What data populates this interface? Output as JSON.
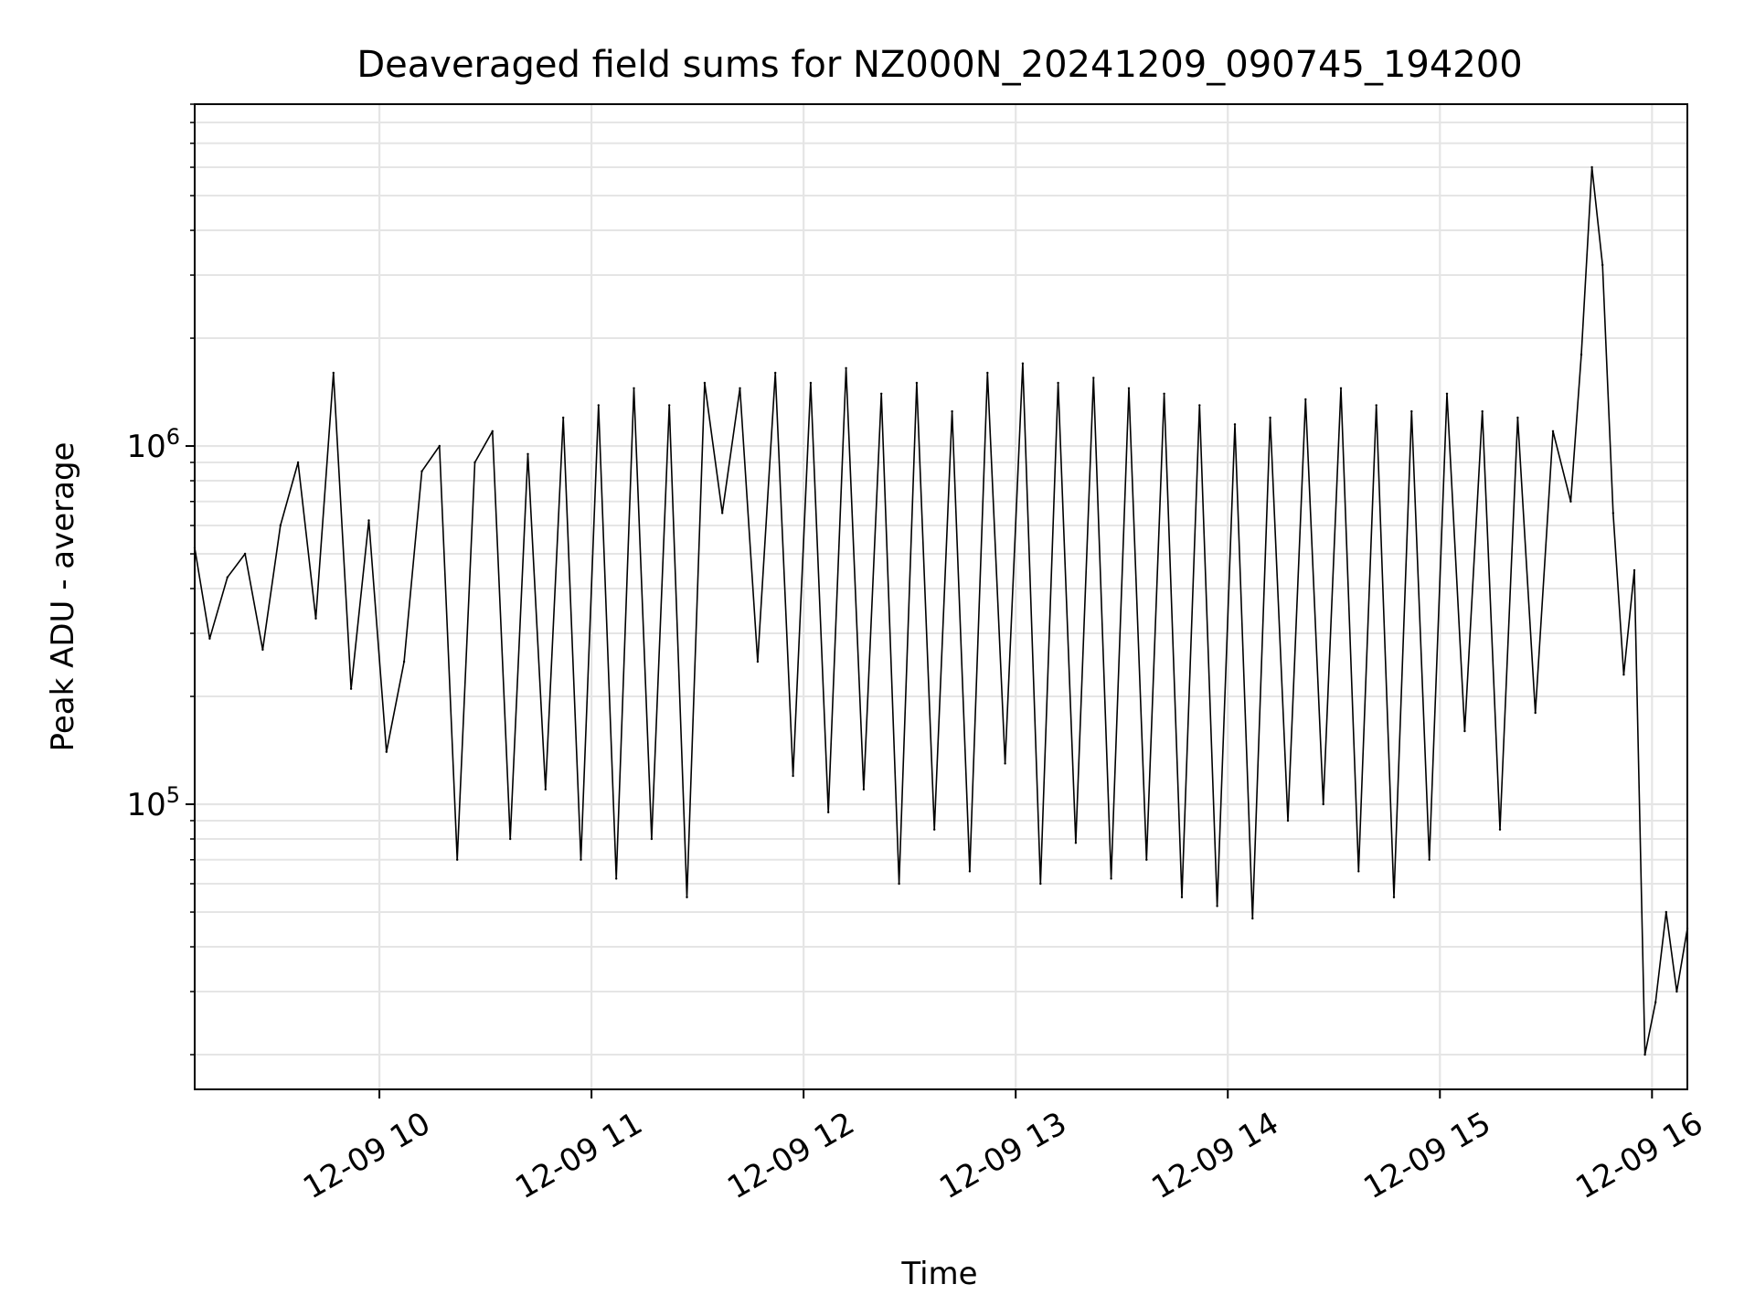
{
  "chart_data": {
    "type": "line",
    "title": "Deaveraged field sums for NZ000N_20241209_090745_194200",
    "xlabel": "Time",
    "ylabel": "Peak ADU - average",
    "x_axis_type": "datetime",
    "xlim": [
      "2024-12-09 09:07:45",
      "2024-12-09 16:10:00"
    ],
    "x_ticks": [
      {
        "value": "2024-12-09 10:00",
        "label": "12-09 10"
      },
      {
        "value": "2024-12-09 11:00",
        "label": "12-09 11"
      },
      {
        "value": "2024-12-09 12:00",
        "label": "12-09 12"
      },
      {
        "value": "2024-12-09 13:00",
        "label": "12-09 13"
      },
      {
        "value": "2024-12-09 14:00",
        "label": "12-09 14"
      },
      {
        "value": "2024-12-09 15:00",
        "label": "12-09 15"
      },
      {
        "value": "2024-12-09 16:00",
        "label": "12-09 16"
      }
    ],
    "y_scale": "log",
    "ylim": [
      16000,
      9000000
    ],
    "y_ticks": [
      {
        "value": 100000,
        "base": "10",
        "exp": "5"
      },
      {
        "value": 1000000,
        "base": "10",
        "exp": "6"
      }
    ],
    "grid": true,
    "legend": "none",
    "series_style": {
      "color": "#000000"
    },
    "grid_color": "#e5e5e5",
    "x": [
      "2024-12-09 09:07:45",
      "2024-12-09 09:12",
      "2024-12-09 09:17",
      "2024-12-09 09:22",
      "2024-12-09 09:27",
      "2024-12-09 09:32",
      "2024-12-09 09:37",
      "2024-12-09 09:42",
      "2024-12-09 09:47",
      "2024-12-09 09:52",
      "2024-12-09 09:57",
      "2024-12-09 10:02",
      "2024-12-09 10:07",
      "2024-12-09 10:12",
      "2024-12-09 10:17",
      "2024-12-09 10:22",
      "2024-12-09 10:27",
      "2024-12-09 10:32",
      "2024-12-09 10:37",
      "2024-12-09 10:42",
      "2024-12-09 10:47",
      "2024-12-09 10:52",
      "2024-12-09 10:57",
      "2024-12-09 11:02",
      "2024-12-09 11:07",
      "2024-12-09 11:12",
      "2024-12-09 11:17",
      "2024-12-09 11:22",
      "2024-12-09 11:27",
      "2024-12-09 11:32",
      "2024-12-09 11:37",
      "2024-12-09 11:42",
      "2024-12-09 11:47",
      "2024-12-09 11:52",
      "2024-12-09 11:57",
      "2024-12-09 12:02",
      "2024-12-09 12:07",
      "2024-12-09 12:12",
      "2024-12-09 12:17",
      "2024-12-09 12:22",
      "2024-12-09 12:27",
      "2024-12-09 12:32",
      "2024-12-09 12:37",
      "2024-12-09 12:42",
      "2024-12-09 12:47",
      "2024-12-09 12:52",
      "2024-12-09 12:57",
      "2024-12-09 13:02",
      "2024-12-09 13:07",
      "2024-12-09 13:12",
      "2024-12-09 13:17",
      "2024-12-09 13:22",
      "2024-12-09 13:27",
      "2024-12-09 13:32",
      "2024-12-09 13:37",
      "2024-12-09 13:42",
      "2024-12-09 13:47",
      "2024-12-09 13:52",
      "2024-12-09 13:57",
      "2024-12-09 14:02",
      "2024-12-09 14:07",
      "2024-12-09 14:12",
      "2024-12-09 14:17",
      "2024-12-09 14:22",
      "2024-12-09 14:27",
      "2024-12-09 14:32",
      "2024-12-09 14:37",
      "2024-12-09 14:42",
      "2024-12-09 14:47",
      "2024-12-09 14:52",
      "2024-12-09 14:57",
      "2024-12-09 15:02",
      "2024-12-09 15:07",
      "2024-12-09 15:12",
      "2024-12-09 15:17",
      "2024-12-09 15:22",
      "2024-12-09 15:27",
      "2024-12-09 15:32",
      "2024-12-09 15:37",
      "2024-12-09 15:40",
      "2024-12-09 15:43",
      "2024-12-09 15:46",
      "2024-12-09 15:49",
      "2024-12-09 15:52",
      "2024-12-09 15:55",
      "2024-12-09 15:58",
      "2024-12-09 16:01",
      "2024-12-09 16:04",
      "2024-12-09 16:07",
      "2024-12-09 16:10"
    ],
    "series": [
      {
        "values": [
          520000,
          290000,
          430000,
          500000,
          270000,
          600000,
          900000,
          330000,
          1600000,
          210000,
          620000,
          140000,
          250000,
          850000,
          1000000,
          70000,
          900000,
          1100000,
          80000,
          950000,
          110000,
          1200000,
          70000,
          1300000,
          62000,
          1450000,
          80000,
          1300000,
          55000,
          1500000,
          650000,
          1450000,
          250000,
          1600000,
          120000,
          1500000,
          95000,
          1650000,
          110000,
          1400000,
          60000,
          1500000,
          85000,
          1250000,
          65000,
          1600000,
          130000,
          1700000,
          60000,
          1500000,
          78000,
          1550000,
          62000,
          1450000,
          70000,
          1400000,
          55000,
          1300000,
          52000,
          1150000,
          48000,
          1200000,
          90000,
          1350000,
          100000,
          1450000,
          65000,
          1300000,
          55000,
          1250000,
          70000,
          1400000,
          160000,
          1250000,
          85000,
          1200000,
          180000,
          1100000,
          700000,
          1800000,
          6000000,
          3200000,
          650000,
          230000,
          450000,
          20000,
          28000,
          50000,
          30000,
          45000
        ]
      }
    ]
  }
}
